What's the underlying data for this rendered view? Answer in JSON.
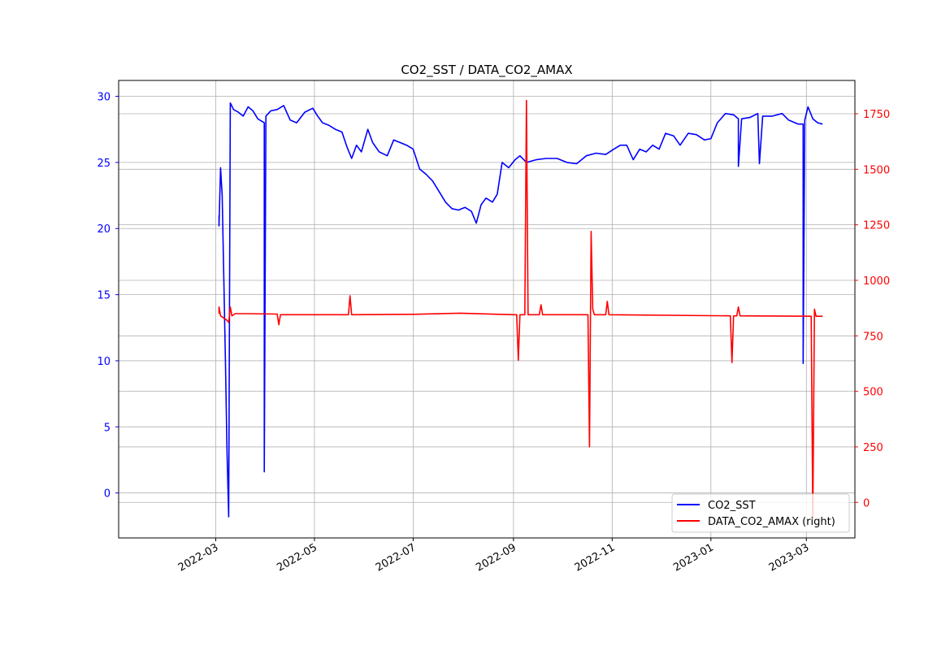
{
  "chart_data": {
    "type": "line",
    "title": "CO2_SST / DATA_CO2_AMAX",
    "grid": true,
    "legend_position": "lower-right",
    "x": {
      "type": "date",
      "range": [
        "2021-12-31",
        "2023-03-31"
      ],
      "ticks": [
        "2022-03",
        "2022-05",
        "2022-07",
        "2022-09",
        "2022-11",
        "2023-01",
        "2023-03"
      ],
      "tick_dates": [
        "2022-03-01",
        "2022-05-01",
        "2022-07-01",
        "2022-09-01",
        "2022-11-01",
        "2023-01-01",
        "2023-03-01"
      ]
    },
    "y_left": {
      "range": [
        -3.4,
        31.2
      ],
      "ticks": [
        0,
        5,
        10,
        15,
        20,
        25,
        30
      ],
      "color": "#0000ff"
    },
    "y_right": {
      "range": [
        -160,
        1900
      ],
      "ticks": [
        0,
        250,
        500,
        750,
        1000,
        1250,
        1500,
        1750
      ],
      "color": "#ff0000"
    },
    "series": [
      {
        "name": "CO2_SST",
        "axis": "left",
        "color": "#0000ff",
        "points": [
          [
            "2022-03-03",
            21.0
          ],
          [
            "2022-03-03",
            20.2
          ],
          [
            "2022-03-04",
            24.6
          ],
          [
            "2022-03-05",
            22.5
          ],
          [
            "2022-03-07",
            10.0
          ],
          [
            "2022-03-08",
            3.0
          ],
          [
            "2022-03-09",
            -1.8
          ],
          [
            "2022-03-10",
            29.5
          ],
          [
            "2022-03-12",
            29.0
          ],
          [
            "2022-03-15",
            28.8
          ],
          [
            "2022-03-18",
            28.5
          ],
          [
            "2022-03-21",
            29.2
          ],
          [
            "2022-03-24",
            28.9
          ],
          [
            "2022-03-27",
            28.3
          ],
          [
            "2022-03-31",
            28.0
          ],
          [
            "2022-03-31",
            1.6
          ],
          [
            "2022-04-01",
            28.5
          ],
          [
            "2022-04-04",
            28.9
          ],
          [
            "2022-04-08",
            29.0
          ],
          [
            "2022-04-12",
            29.3
          ],
          [
            "2022-04-16",
            28.2
          ],
          [
            "2022-04-20",
            28.0
          ],
          [
            "2022-04-25",
            28.8
          ],
          [
            "2022-04-30",
            29.1
          ],
          [
            "2022-05-03",
            28.5
          ],
          [
            "2022-05-06",
            28.0
          ],
          [
            "2022-05-10",
            27.8
          ],
          [
            "2022-05-14",
            27.5
          ],
          [
            "2022-05-18",
            27.3
          ],
          [
            "2022-05-21",
            26.2
          ],
          [
            "2022-05-24",
            25.3
          ],
          [
            "2022-05-27",
            26.3
          ],
          [
            "2022-05-30",
            25.8
          ],
          [
            "2022-06-03",
            27.5
          ],
          [
            "2022-06-06",
            26.5
          ],
          [
            "2022-06-10",
            25.8
          ],
          [
            "2022-06-15",
            25.5
          ],
          [
            "2022-06-19",
            26.7
          ],
          [
            "2022-06-23",
            26.5
          ],
          [
            "2022-06-27",
            26.3
          ],
          [
            "2022-07-01",
            26.0
          ],
          [
            "2022-07-05",
            24.5
          ],
          [
            "2022-07-09",
            24.1
          ],
          [
            "2022-07-13",
            23.6
          ],
          [
            "2022-07-17",
            22.8
          ],
          [
            "2022-07-21",
            22.0
          ],
          [
            "2022-07-25",
            21.5
          ],
          [
            "2022-07-29",
            21.4
          ],
          [
            "2022-08-02",
            21.6
          ],
          [
            "2022-08-06",
            21.3
          ],
          [
            "2022-08-09",
            20.4
          ],
          [
            "2022-08-12",
            21.8
          ],
          [
            "2022-08-15",
            22.3
          ],
          [
            "2022-08-19",
            22.0
          ],
          [
            "2022-08-22",
            22.6
          ],
          [
            "2022-08-25",
            25.0
          ],
          [
            "2022-08-29",
            24.6
          ],
          [
            "2022-09-02",
            25.2
          ],
          [
            "2022-09-05",
            25.5
          ],
          [
            "2022-09-09",
            25.0
          ],
          [
            "2022-09-15",
            25.2
          ],
          [
            "2022-09-21",
            25.3
          ],
          [
            "2022-09-28",
            25.3
          ],
          [
            "2022-10-04",
            25.0
          ],
          [
            "2022-10-10",
            24.9
          ],
          [
            "2022-10-16",
            25.5
          ],
          [
            "2022-10-22",
            25.7
          ],
          [
            "2022-10-28",
            25.6
          ],
          [
            "2022-11-02",
            26.0
          ],
          [
            "2022-11-06",
            26.3
          ],
          [
            "2022-11-10",
            26.3
          ],
          [
            "2022-11-14",
            25.2
          ],
          [
            "2022-11-18",
            26.0
          ],
          [
            "2022-11-22",
            25.8
          ],
          [
            "2022-11-26",
            26.3
          ],
          [
            "2022-11-30",
            26.0
          ],
          [
            "2022-12-04",
            27.2
          ],
          [
            "2022-12-09",
            27.0
          ],
          [
            "2022-12-13",
            26.3
          ],
          [
            "2022-12-18",
            27.2
          ],
          [
            "2022-12-23",
            27.1
          ],
          [
            "2022-12-28",
            26.7
          ],
          [
            "2023-01-01",
            26.8
          ],
          [
            "2023-01-05",
            28.0
          ],
          [
            "2023-01-10",
            28.7
          ],
          [
            "2023-01-15",
            28.6
          ],
          [
            "2023-01-18",
            28.3
          ],
          [
            "2023-01-18",
            24.7
          ],
          [
            "2023-01-20",
            28.3
          ],
          [
            "2023-01-25",
            28.4
          ],
          [
            "2023-01-30",
            28.7
          ],
          [
            "2023-01-31",
            24.9
          ],
          [
            "2023-02-02",
            28.5
          ],
          [
            "2023-02-08",
            28.5
          ],
          [
            "2023-02-14",
            28.7
          ],
          [
            "2023-02-18",
            28.2
          ],
          [
            "2023-02-24",
            27.9
          ],
          [
            "2023-02-27",
            27.9
          ],
          [
            "2023-02-27",
            9.8
          ],
          [
            "2023-02-28",
            28.2
          ],
          [
            "2023-03-02",
            29.2
          ],
          [
            "2023-03-05",
            28.3
          ],
          [
            "2023-03-08",
            28.0
          ],
          [
            "2023-03-11",
            27.9
          ]
        ]
      },
      {
        "name": "DATA_CO2_AMAX",
        "axis": "right",
        "color": "#ff0000",
        "points": [
          [
            "2022-03-03",
            850
          ],
          [
            "2022-03-03",
            880
          ],
          [
            "2022-03-04",
            840
          ],
          [
            "2022-03-08",
            820
          ],
          [
            "2022-03-09",
            810
          ],
          [
            "2022-03-10",
            880
          ],
          [
            "2022-03-11",
            840
          ],
          [
            "2022-03-13",
            850
          ],
          [
            "2022-03-20",
            850
          ],
          [
            "2022-04-08",
            848
          ],
          [
            "2022-04-09",
            800
          ],
          [
            "2022-04-10",
            845
          ],
          [
            "2022-05-22",
            845
          ],
          [
            "2022-05-23",
            930
          ],
          [
            "2022-05-24",
            845
          ],
          [
            "2022-07-01",
            847
          ],
          [
            "2022-07-30",
            852
          ],
          [
            "2022-09-01",
            845
          ],
          [
            "2022-09-03",
            845
          ],
          [
            "2022-09-04",
            640
          ],
          [
            "2022-09-05",
            845
          ],
          [
            "2022-09-08",
            845
          ],
          [
            "2022-09-09",
            1810
          ],
          [
            "2022-09-10",
            845
          ],
          [
            "2022-09-17",
            845
          ],
          [
            "2022-09-18",
            890
          ],
          [
            "2022-09-19",
            845
          ],
          [
            "2022-10-17",
            845
          ],
          [
            "2022-10-18",
            250
          ],
          [
            "2022-10-19",
            1220
          ],
          [
            "2022-10-20",
            870
          ],
          [
            "2022-10-21",
            845
          ],
          [
            "2022-10-28",
            845
          ],
          [
            "2022-10-29",
            905
          ],
          [
            "2022-10-30",
            845
          ],
          [
            "2023-01-13",
            840
          ],
          [
            "2023-01-14",
            630
          ],
          [
            "2023-01-15",
            840
          ],
          [
            "2023-01-17",
            840
          ],
          [
            "2023-01-18",
            880
          ],
          [
            "2023-01-19",
            840
          ],
          [
            "2023-03-04",
            838
          ],
          [
            "2023-03-05",
            -70
          ],
          [
            "2023-03-06",
            870
          ],
          [
            "2023-03-07",
            838
          ],
          [
            "2023-03-11",
            838
          ]
        ]
      }
    ],
    "legend": [
      "CO2_SST",
      "DATA_CO2_AMAX (right)"
    ]
  }
}
